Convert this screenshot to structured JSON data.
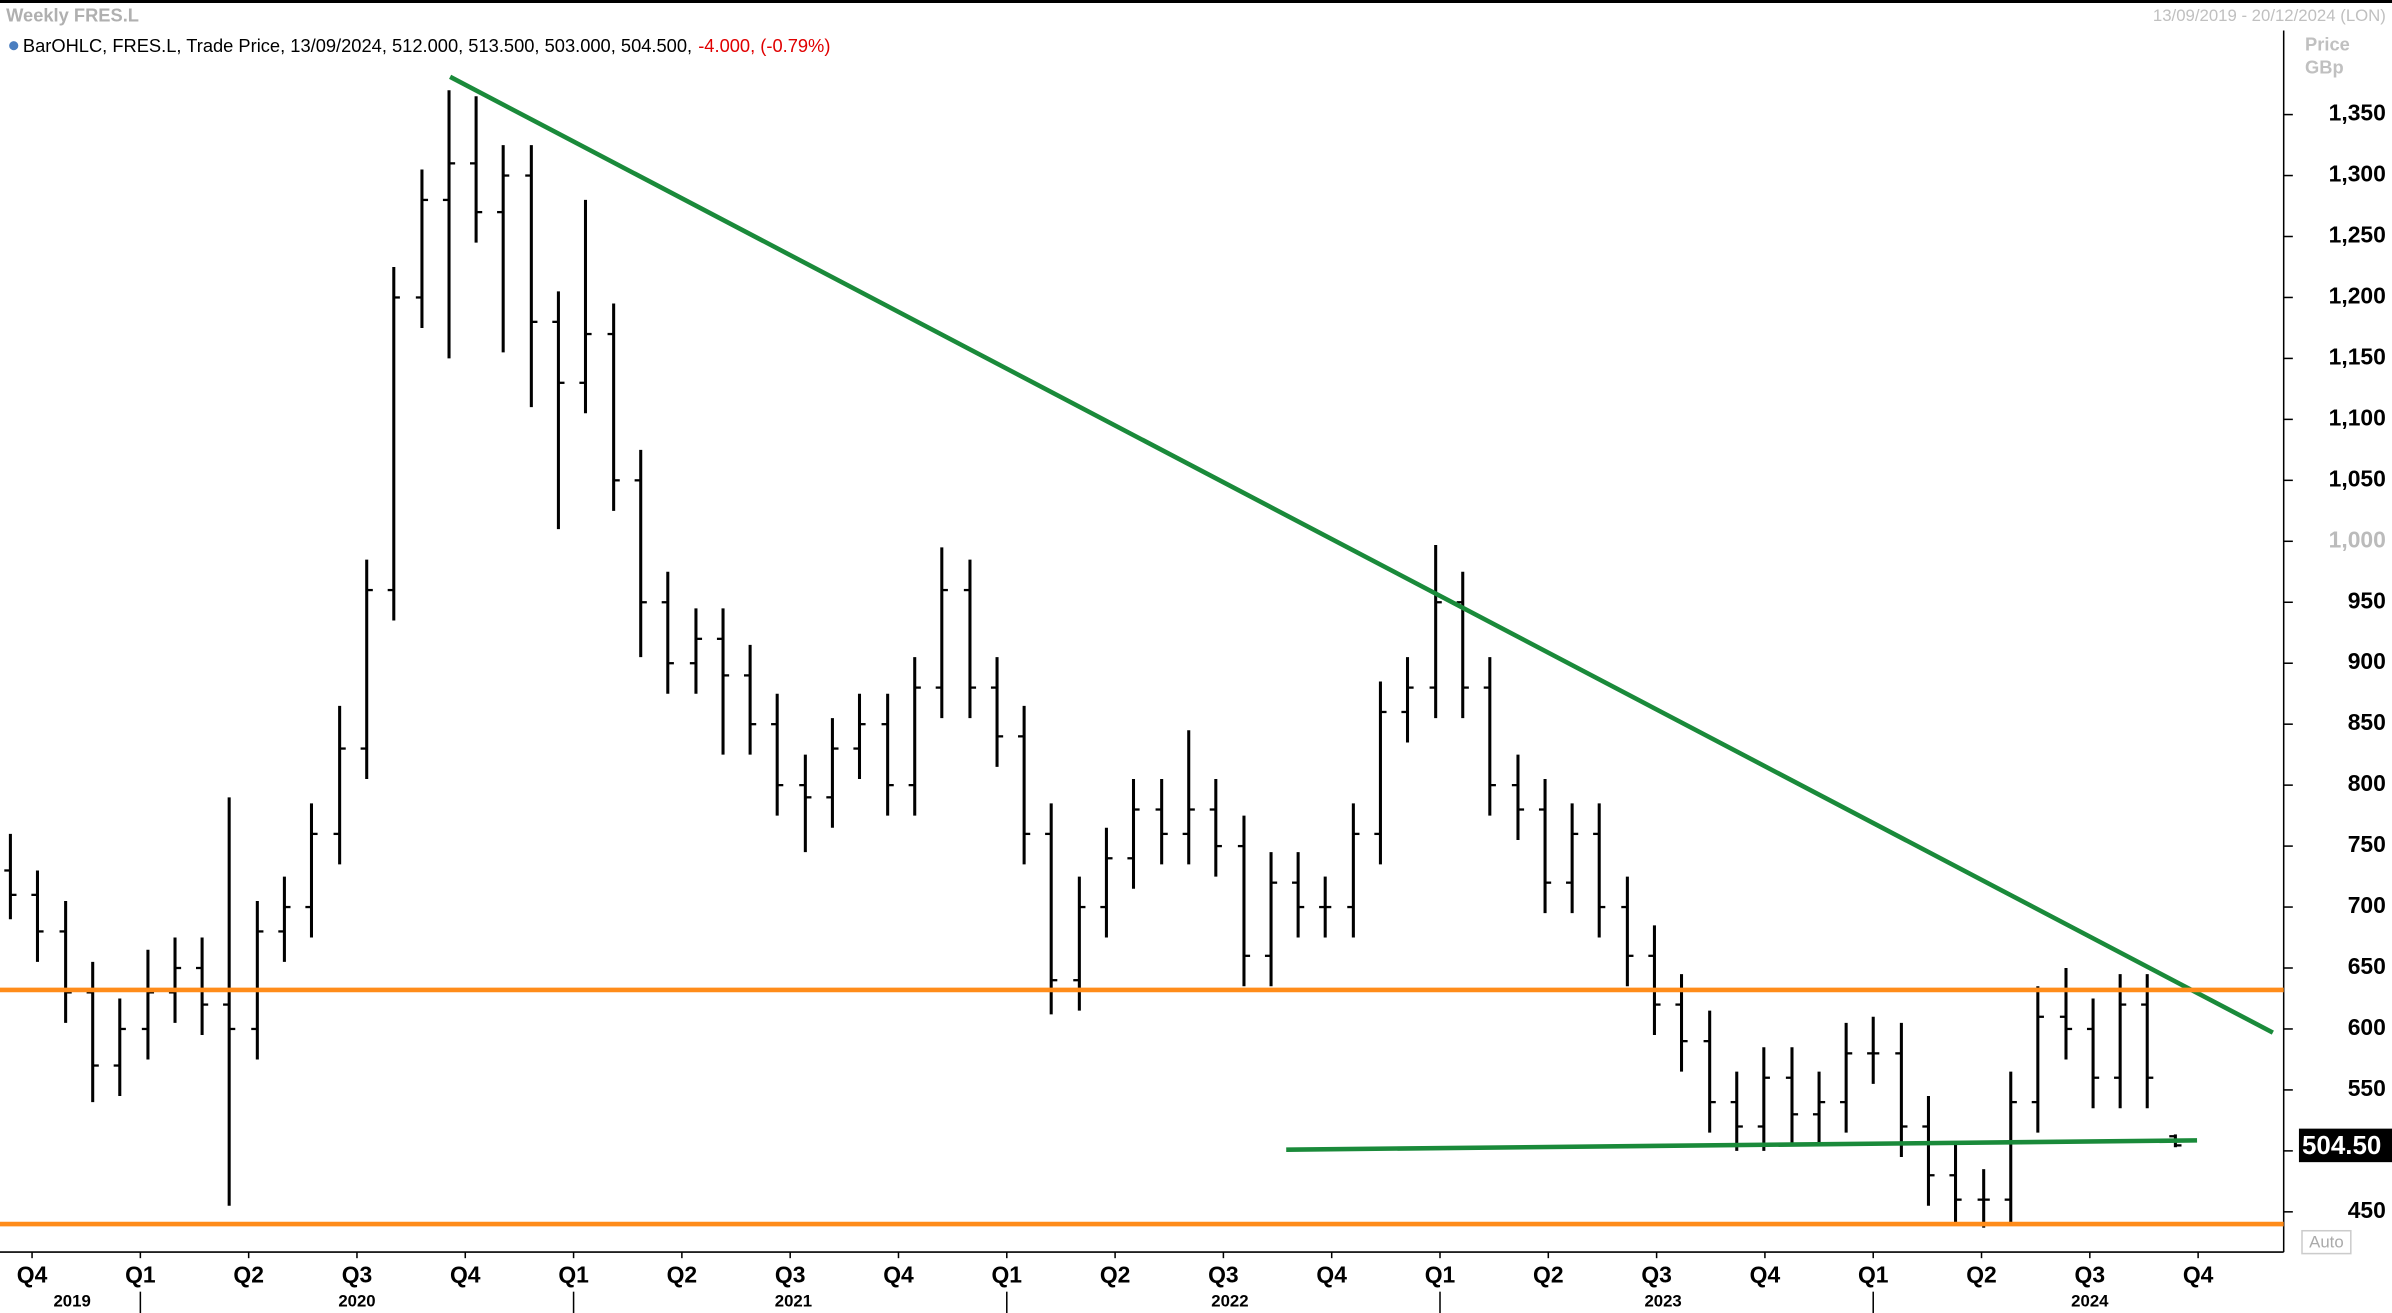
{
  "header": {
    "legend": "BarOHLC, FRES.L, Trade Price, 13/09/2024, 512.000, 513.500, 503.000, 504.500,",
    "change": "-4.000, (-0.79%)",
    "range": "13/09/2019 - 20/12/2024 (LON)",
    "y_label": "Price",
    "y_unit": "GBp",
    "auto": "Auto"
  },
  "chart_data": {
    "type": "ohlc",
    "title": "Weekly FRES.L",
    "color": "#000000",
    "x": [
      -0.2,
      0.05,
      0.31,
      0.56,
      0.81,
      1.07,
      1.32,
      1.57,
      1.82,
      2.08,
      2.33,
      2.58,
      2.84,
      3.09,
      3.34,
      3.6,
      3.85,
      4.1,
      4.35,
      4.61,
      4.86,
      5.11,
      5.37,
      5.62,
      5.87,
      6.13,
      6.38,
      6.63,
      6.88,
      7.14,
      7.39,
      7.64,
      7.9,
      8.15,
      8.4,
      8.66,
      8.91,
      9.16,
      9.41,
      9.67,
      9.92,
      10.17,
      10.43,
      10.68,
      10.93,
      11.19,
      11.44,
      11.69,
      11.94,
      12.2,
      12.45,
      12.7,
      12.96,
      13.21,
      13.46,
      13.72,
      13.97,
      14.22,
      14.47,
      14.73,
      14.98,
      15.23,
      15.49,
      15.74,
      15.99,
      16.25,
      16.5,
      16.75,
      17.0,
      17.26,
      17.51,
      17.76,
      18.02,
      18.27,
      18.52,
      18.78,
      19.03,
      19.28,
      19.53,
      19.79
    ],
    "open": [
      730,
      710,
      680,
      630,
      570,
      600,
      630,
      650,
      620,
      600,
      680,
      700,
      760,
      830,
      960,
      1200,
      1280,
      1310,
      1270,
      1300,
      1180,
      1130,
      1170,
      1050,
      950,
      900,
      920,
      890,
      850,
      800,
      790,
      830,
      850,
      800,
      880,
      960,
      880,
      840,
      760,
      640,
      700,
      740,
      780,
      760,
      780,
      750,
      660,
      720,
      700,
      700,
      760,
      860,
      880,
      950,
      880,
      800,
      780,
      720,
      760,
      700,
      660,
      620,
      590,
      540,
      520,
      560,
      530,
      540,
      580,
      580,
      520,
      480,
      460,
      460,
      540,
      610,
      600,
      560,
      620,
      512
    ],
    "high": [
      760,
      730,
      705,
      655,
      625,
      665,
      675,
      675,
      790,
      705,
      725,
      785,
      865,
      985,
      1225,
      1305,
      1370,
      1365,
      1325,
      1325,
      1205,
      1280,
      1195,
      1075,
      975,
      945,
      945,
      915,
      875,
      825,
      855,
      875,
      875,
      905,
      995,
      985,
      905,
      865,
      785,
      725,
      765,
      805,
      805,
      845,
      805,
      775,
      745,
      745,
      725,
      785,
      885,
      905,
      997,
      975,
      905,
      825,
      805,
      785,
      785,
      725,
      685,
      645,
      615,
      565,
      585,
      585,
      565,
      605,
      610,
      605,
      545,
      505,
      485,
      565,
      635,
      650,
      625,
      645,
      645,
      513.5
    ],
    "low": [
      690,
      655,
      605,
      540,
      545,
      575,
      605,
      595,
      455,
      575,
      655,
      675,
      735,
      805,
      935,
      1175,
      1150,
      1245,
      1155,
      1110,
      1010,
      1105,
      1025,
      905,
      875,
      875,
      825,
      825,
      775,
      745,
      765,
      805,
      775,
      775,
      855,
      855,
      815,
      735,
      612,
      615,
      675,
      715,
      735,
      735,
      725,
      635,
      635,
      675,
      675,
      675,
      735,
      835,
      855,
      855,
      775,
      755,
      695,
      695,
      675,
      635,
      595,
      565,
      515,
      500,
      500,
      505,
      505,
      515,
      555,
      495,
      455,
      440,
      437,
      440,
      515,
      575,
      535,
      535,
      535,
      503
    ],
    "close": [
      710,
      680,
      630,
      570,
      600,
      630,
      650,
      620,
      600,
      680,
      700,
      760,
      830,
      960,
      1200,
      1280,
      1310,
      1270,
      1300,
      1180,
      1130,
      1170,
      1050,
      950,
      900,
      920,
      890,
      850,
      800,
      790,
      830,
      850,
      800,
      880,
      960,
      880,
      840,
      760,
      640,
      700,
      740,
      780,
      760,
      780,
      750,
      660,
      720,
      700,
      700,
      760,
      860,
      880,
      950,
      880,
      800,
      780,
      720,
      760,
      700,
      660,
      620,
      590,
      540,
      520,
      560,
      530,
      540,
      580,
      580,
      520,
      480,
      460,
      460,
      540,
      610,
      600,
      560,
      620,
      560,
      504.5
    ],
    "xlim": [
      -0.296,
      20.79
    ],
    "ylim": [
      417,
      1419
    ],
    "xticks": [
      {
        "value": 0,
        "label": "Q4"
      },
      {
        "value": 1,
        "label": "Q1"
      },
      {
        "value": 2,
        "label": "Q2"
      },
      {
        "value": 3,
        "label": "Q3"
      },
      {
        "value": 4,
        "label": "Q4"
      },
      {
        "value": 5,
        "label": "Q1"
      },
      {
        "value": 6,
        "label": "Q2"
      },
      {
        "value": 7,
        "label": "Q3"
      },
      {
        "value": 8,
        "label": "Q4"
      },
      {
        "value": 9,
        "label": "Q1"
      },
      {
        "value": 10,
        "label": "Q2"
      },
      {
        "value": 11,
        "label": "Q3"
      },
      {
        "value": 12,
        "label": "Q4"
      },
      {
        "value": 13,
        "label": "Q1"
      },
      {
        "value": 14,
        "label": "Q2"
      },
      {
        "value": 15,
        "label": "Q3"
      },
      {
        "value": 16,
        "label": "Q4"
      },
      {
        "value": 17,
        "label": "Q1"
      },
      {
        "value": 18,
        "label": "Q2"
      },
      {
        "value": 19,
        "label": "Q3"
      },
      {
        "value": 20,
        "label": "Q4"
      }
    ],
    "year_labels": [
      {
        "value": 0.37,
        "label": "2019"
      },
      {
        "value": 3.0,
        "label": "2020"
      },
      {
        "value": 7.03,
        "label": "2021"
      },
      {
        "value": 11.06,
        "label": "2022"
      },
      {
        "value": 15.06,
        "label": "2023"
      },
      {
        "value": 19.0,
        "label": "2024"
      }
    ],
    "year_starts": [
      1,
      5,
      9,
      13,
      17
    ],
    "yticks": [
      450,
      500,
      550,
      600,
      650,
      700,
      750,
      800,
      850,
      900,
      950,
      {
        "value": 1000,
        "label": "1,000"
      },
      {
        "value": 1050,
        "label": "1,050"
      },
      {
        "value": 1100,
        "label": "1,100"
      },
      {
        "value": 1150,
        "label": "1,150"
      },
      {
        "value": 1200,
        "label": "1,200"
      },
      {
        "value": 1250,
        "label": "1,250"
      },
      {
        "value": 1300,
        "label": "1,300"
      },
      {
        "value": 1350,
        "label": "1,350"
      }
    ],
    "last_price": {
      "value": 504.5,
      "label": "504.50"
    },
    "lines": [
      {
        "color": "#1a8a3a",
        "x": [
          3.86,
          20.69
        ],
        "y": [
          1381,
          597
        ]
      },
      {
        "color": "#1a8a3a",
        "x": [
          11.58,
          19.99
        ],
        "y": [
          501,
          508.6
        ]
      },
      {
        "color": "#ff8c1a",
        "x": [
          -0.296,
          20.79
        ],
        "y": [
          632,
          632
        ]
      },
      {
        "color": "#ff8c1a",
        "x": [
          -0.296,
          20.79
        ],
        "y": [
          440,
          440
        ]
      }
    ]
  }
}
